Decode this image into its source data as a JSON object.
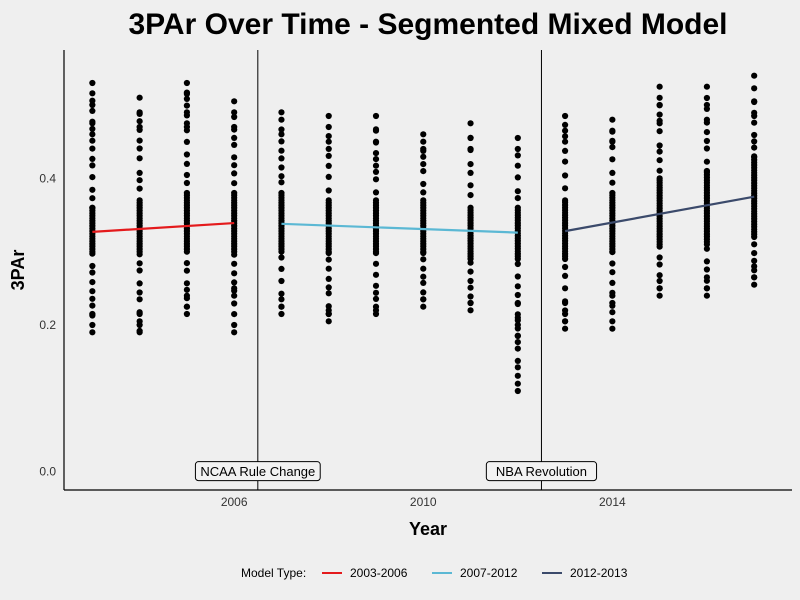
{
  "chart_data": {
    "type": "scatter",
    "title": "3PAr Over Time - Segmented Mixed Model",
    "xlabel": "Year",
    "ylabel": "3PAr",
    "xlim": [
      2002.4,
      2017.8
    ],
    "ylim": [
      -0.025,
      0.575
    ],
    "x_ticks": [
      2006,
      2010,
      2014
    ],
    "y_ticks": [
      0.0,
      0.2,
      0.4
    ],
    "y_tick_labels": [
      "0.0",
      "0.2",
      "0.4"
    ],
    "grid": false,
    "legend_position": "bottom",
    "legend_title": "Model Type:",
    "breakpoints": [
      2006.5,
      2012.5
    ],
    "annotations": [
      {
        "label": "NCAA Rule Change",
        "x": 2006.5,
        "y": 0.0
      },
      {
        "label": "NBA Revolution",
        "x": 2012.5,
        "y": 0.0
      }
    ],
    "points": [
      {
        "year": 2003,
        "min": 0.19,
        "max": 0.53,
        "q1": 0.3,
        "q3": 0.36,
        "extras": [
          0.19,
          0.215,
          0.46,
          0.475,
          0.5,
          0.53
        ]
      },
      {
        "year": 2004,
        "min": 0.19,
        "max": 0.51,
        "q1": 0.3,
        "q3": 0.37,
        "extras": [
          0.19,
          0.192,
          0.205,
          0.215,
          0.47,
          0.49,
          0.51
        ]
      },
      {
        "year": 2005,
        "min": 0.215,
        "max": 0.53,
        "q1": 0.3,
        "q3": 0.38,
        "extras": [
          0.215,
          0.225,
          0.24,
          0.47,
          0.49,
          0.515,
          0.53
        ]
      },
      {
        "year": 2006,
        "min": 0.19,
        "max": 0.505,
        "q1": 0.3,
        "q3": 0.38,
        "extras": [
          0.19,
          0.24,
          0.25,
          0.47,
          0.49,
          0.505
        ]
      },
      {
        "year": 2007,
        "min": 0.215,
        "max": 0.49,
        "q1": 0.3,
        "q3": 0.38,
        "extras": [
          0.215,
          0.225,
          0.235,
          0.46,
          0.48,
          0.49
        ]
      },
      {
        "year": 2008,
        "min": 0.205,
        "max": 0.485,
        "q1": 0.3,
        "q3": 0.37,
        "extras": [
          0.205,
          0.215,
          0.22,
          0.45,
          0.47,
          0.485
        ]
      },
      {
        "year": 2009,
        "min": 0.215,
        "max": 0.485,
        "q1": 0.3,
        "q3": 0.37,
        "extras": [
          0.215,
          0.22,
          0.45,
          0.465,
          0.485
        ]
      },
      {
        "year": 2010,
        "min": 0.225,
        "max": 0.46,
        "q1": 0.3,
        "q3": 0.37,
        "extras": [
          0.225,
          0.235,
          0.44,
          0.45,
          0.46
        ]
      },
      {
        "year": 2011,
        "min": 0.22,
        "max": 0.475,
        "q1": 0.29,
        "q3": 0.36,
        "extras": [
          0.22,
          0.23,
          0.44,
          0.455,
          0.475
        ]
      },
      {
        "year": 2012,
        "min": 0.11,
        "max": 0.455,
        "q1": 0.29,
        "q3": 0.36,
        "extras": [
          0.11,
          0.185,
          0.2,
          0.21,
          0.23,
          0.44,
          0.455
        ]
      },
      {
        "year": 2013,
        "min": 0.195,
        "max": 0.485,
        "q1": 0.29,
        "q3": 0.37,
        "extras": [
          0.195,
          0.205,
          0.215,
          0.23,
          0.45,
          0.465,
          0.485
        ]
      },
      {
        "year": 2014,
        "min": 0.195,
        "max": 0.48,
        "q1": 0.3,
        "q3": 0.38,
        "extras": [
          0.195,
          0.23,
          0.24,
          0.45,
          0.465,
          0.48
        ]
      },
      {
        "year": 2015,
        "min": 0.24,
        "max": 0.525,
        "q1": 0.31,
        "q3": 0.4,
        "extras": [
          0.24,
          0.25,
          0.26,
          0.475,
          0.5,
          0.525
        ]
      },
      {
        "year": 2016,
        "min": 0.24,
        "max": 0.525,
        "q1": 0.31,
        "q3": 0.41,
        "extras": [
          0.24,
          0.25,
          0.265,
          0.48,
          0.5,
          0.525
        ]
      },
      {
        "year": 2017,
        "min": 0.255,
        "max": 0.54,
        "q1": 0.32,
        "q3": 0.43,
        "extras": [
          0.255,
          0.265,
          0.28,
          0.485,
          0.505,
          0.54
        ]
      }
    ],
    "series": [
      {
        "name": "2003-2006",
        "color": "#e41a1c",
        "x": [
          2003,
          2006
        ],
        "y": [
          0.327,
          0.339
        ]
      },
      {
        "name": "2007-2012",
        "color": "#5bb8d4",
        "x": [
          2007,
          2012
        ],
        "y": [
          0.338,
          0.326
        ]
      },
      {
        "name": "2012-2013",
        "color": "#3b4a6b",
        "x": [
          2013,
          2017
        ],
        "y": [
          0.328,
          0.375
        ]
      }
    ]
  }
}
